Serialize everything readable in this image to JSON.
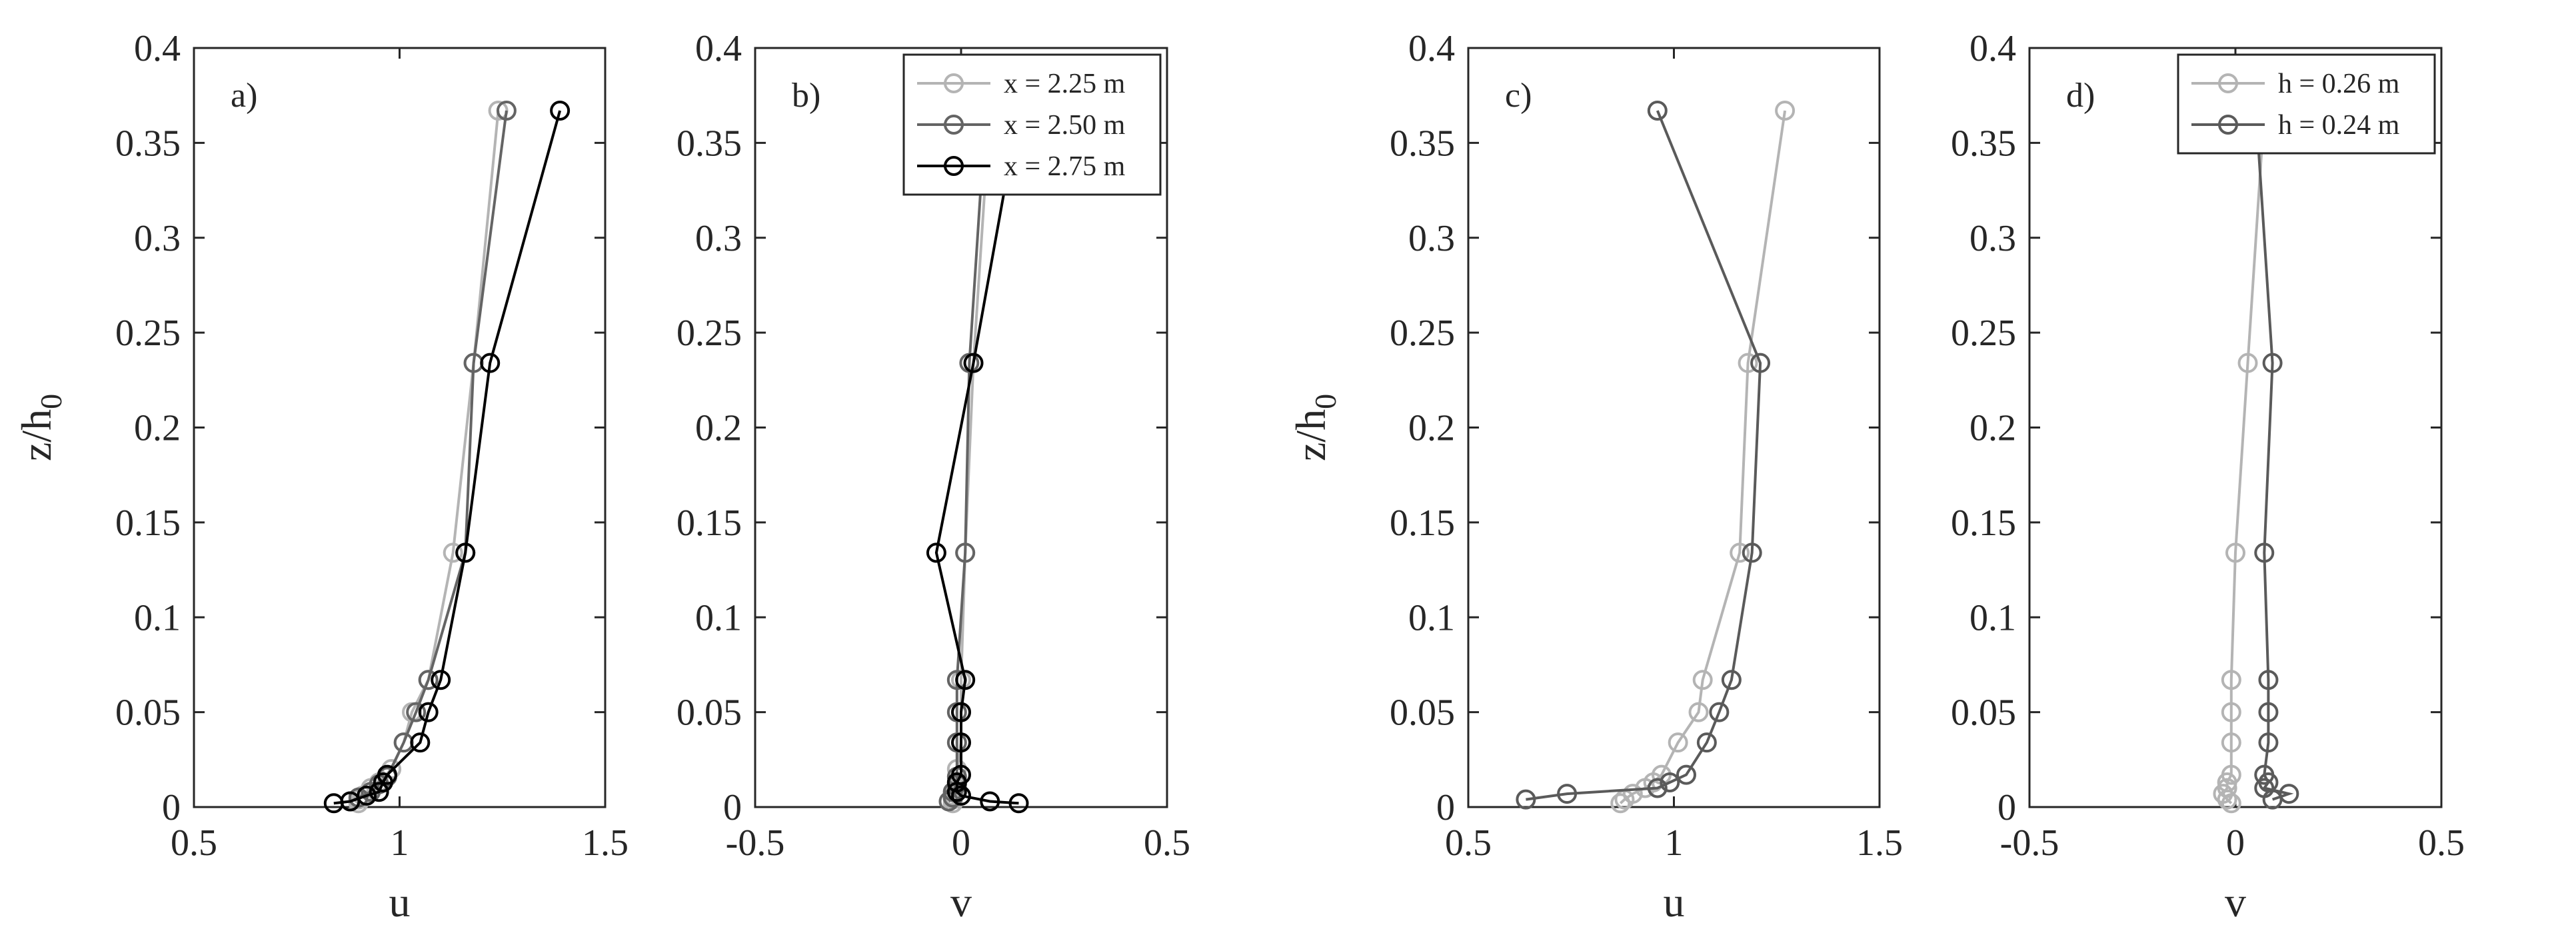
{
  "chart_data": [
    {
      "type": "line",
      "panel_label": "a)",
      "xlabel": "u",
      "ylabel": "z/h",
      "ylabel_subscript": "0",
      "xlim": [
        0.5,
        1.5
      ],
      "ylim": [
        0,
        0.4
      ],
      "xticks": [
        0.5,
        1,
        1.5
      ],
      "yticks": [
        0,
        0.05,
        0.1,
        0.15,
        0.2,
        0.25,
        0.3,
        0.35,
        0.4
      ],
      "legend": false,
      "series": [
        {
          "color": "#b4b4b4",
          "points": [
            [
              0.9,
              0.002
            ],
            [
              0.9,
              0.004
            ],
            [
              0.91,
              0.006
            ],
            [
              0.93,
              0.01
            ],
            [
              0.95,
              0.013
            ],
            [
              0.98,
              0.02
            ],
            [
              1.01,
              0.034
            ],
            [
              1.03,
              0.05
            ],
            [
              1.07,
              0.067
            ],
            [
              1.13,
              0.134
            ],
            [
              1.18,
              0.234
            ],
            [
              1.24,
              0.367
            ]
          ]
        },
        {
          "color": "#646464",
          "points": [
            [
              0.88,
              0.003
            ],
            [
              0.9,
              0.005
            ],
            [
              0.93,
              0.008
            ],
            [
              0.95,
              0.012
            ],
            [
              0.97,
              0.016
            ],
            [
              1.01,
              0.034
            ],
            [
              1.04,
              0.05
            ],
            [
              1.07,
              0.067
            ],
            [
              1.16,
              0.134
            ],
            [
              1.18,
              0.234
            ],
            [
              1.26,
              0.367
            ]
          ]
        },
        {
          "color": "#000000",
          "points": [
            [
              0.84,
              0.002
            ],
            [
              0.88,
              0.003
            ],
            [
              0.92,
              0.006
            ],
            [
              0.95,
              0.008
            ],
            [
              0.96,
              0.013
            ],
            [
              0.97,
              0.017
            ],
            [
              1.05,
              0.034
            ],
            [
              1.07,
              0.05
            ],
            [
              1.1,
              0.067
            ],
            [
              1.16,
              0.134
            ],
            [
              1.22,
              0.234
            ],
            [
              1.39,
              0.367
            ]
          ]
        }
      ]
    },
    {
      "type": "line",
      "panel_label": "b)",
      "xlabel": "v",
      "ylabel": "",
      "xlim": [
        -0.5,
        0.5
      ],
      "ylim": [
        0,
        0.4
      ],
      "xticks": [
        -0.5,
        0,
        0.5
      ],
      "yticks": [
        0,
        0.05,
        0.1,
        0.15,
        0.2,
        0.25,
        0.3,
        0.35,
        0.4
      ],
      "legend": true,
      "legend_position": "top-right",
      "series": [
        {
          "name": "x = 2.25 m",
          "color": "#b4b4b4",
          "points": [
            [
              -0.02,
              0.002
            ],
            [
              -0.02,
              0.004
            ],
            [
              -0.02,
              0.006
            ],
            [
              -0.01,
              0.01
            ],
            [
              -0.01,
              0.013
            ],
            [
              -0.01,
              0.02
            ],
            [
              0.0,
              0.034
            ],
            [
              0.0,
              0.05
            ],
            [
              0.0,
              0.067
            ],
            [
              0.01,
              0.134
            ],
            [
              0.03,
              0.234
            ],
            [
              0.07,
              0.367
            ]
          ]
        },
        {
          "name": "x = 2.50 m",
          "color": "#646464",
          "points": [
            [
              -0.03,
              0.003
            ],
            [
              -0.02,
              0.005
            ],
            [
              -0.02,
              0.008
            ],
            [
              -0.01,
              0.012
            ],
            [
              -0.01,
              0.016
            ],
            [
              -0.01,
              0.034
            ],
            [
              -0.01,
              0.05
            ],
            [
              -0.01,
              0.067
            ],
            [
              0.01,
              0.134
            ],
            [
              0.02,
              0.234
            ],
            [
              0.06,
              0.367
            ]
          ]
        },
        {
          "name": "x = 2.75 m",
          "color": "#000000",
          "points": [
            [
              0.14,
              0.002
            ],
            [
              0.07,
              0.003
            ],
            [
              0.0,
              0.006
            ],
            [
              -0.01,
              0.008
            ],
            [
              -0.01,
              0.013
            ],
            [
              0.0,
              0.017
            ],
            [
              0.0,
              0.034
            ],
            [
              0.0,
              0.05
            ],
            [
              0.01,
              0.067
            ],
            [
              -0.06,
              0.134
            ],
            [
              0.03,
              0.234
            ],
            [
              0.14,
              0.367
            ]
          ]
        }
      ]
    },
    {
      "type": "line",
      "panel_label": "c)",
      "xlabel": "u",
      "ylabel": "z/h",
      "ylabel_subscript": "0",
      "xlim": [
        0.5,
        1.5
      ],
      "ylim": [
        0,
        0.4
      ],
      "xticks": [
        0.5,
        1,
        1.5
      ],
      "yticks": [
        0,
        0.05,
        0.1,
        0.15,
        0.2,
        0.25,
        0.3,
        0.35,
        0.4
      ],
      "legend": false,
      "series": [
        {
          "color": "#b4b4b4",
          "points": [
            [
              0.87,
              0.002
            ],
            [
              0.88,
              0.004
            ],
            [
              0.9,
              0.007
            ],
            [
              0.93,
              0.01
            ],
            [
              0.95,
              0.013
            ],
            [
              0.97,
              0.017
            ],
            [
              1.01,
              0.034
            ],
            [
              1.06,
              0.05
            ],
            [
              1.07,
              0.067
            ],
            [
              1.16,
              0.134
            ],
            [
              1.18,
              0.234
            ],
            [
              1.27,
              0.367
            ]
          ]
        },
        {
          "color": "#5a5a5a",
          "points": [
            [
              0.64,
              0.004
            ],
            [
              0.74,
              0.007
            ],
            [
              0.96,
              0.01
            ],
            [
              0.99,
              0.013
            ],
            [
              1.03,
              0.017
            ],
            [
              1.08,
              0.034
            ],
            [
              1.11,
              0.05
            ],
            [
              1.14,
              0.067
            ],
            [
              1.19,
              0.134
            ],
            [
              1.21,
              0.234
            ],
            [
              0.96,
              0.367
            ]
          ]
        }
      ]
    },
    {
      "type": "line",
      "panel_label": "d)",
      "xlabel": "v",
      "ylabel": "",
      "xlim": [
        -0.5,
        0.5
      ],
      "ylim": [
        0,
        0.4
      ],
      "xticks": [
        -0.5,
        0,
        0.5
      ],
      "yticks": [
        0,
        0.05,
        0.1,
        0.15,
        0.2,
        0.25,
        0.3,
        0.35,
        0.4
      ],
      "legend": true,
      "legend_position": "top-right",
      "series": [
        {
          "name": "h = 0.26 m",
          "color": "#b4b4b4",
          "points": [
            [
              -0.01,
              0.002
            ],
            [
              -0.02,
              0.004
            ],
            [
              -0.03,
              0.007
            ],
            [
              -0.02,
              0.01
            ],
            [
              -0.02,
              0.013
            ],
            [
              -0.01,
              0.017
            ],
            [
              -0.01,
              0.034
            ],
            [
              -0.01,
              0.05
            ],
            [
              -0.01,
              0.067
            ],
            [
              0.0,
              0.134
            ],
            [
              0.03,
              0.234
            ],
            [
              0.07,
              0.367
            ]
          ]
        },
        {
          "color": "#5a5a5a",
          "name": "h = 0.24 m",
          "points": [
            [
              0.09,
              0.004
            ],
            [
              0.13,
              0.007
            ],
            [
              0.07,
              0.01
            ],
            [
              0.08,
              0.013
            ],
            [
              0.07,
              0.017
            ],
            [
              0.08,
              0.034
            ],
            [
              0.08,
              0.05
            ],
            [
              0.08,
              0.067
            ],
            [
              0.07,
              0.134
            ],
            [
              0.09,
              0.234
            ],
            [
              0.05,
              0.367
            ]
          ]
        }
      ]
    }
  ]
}
